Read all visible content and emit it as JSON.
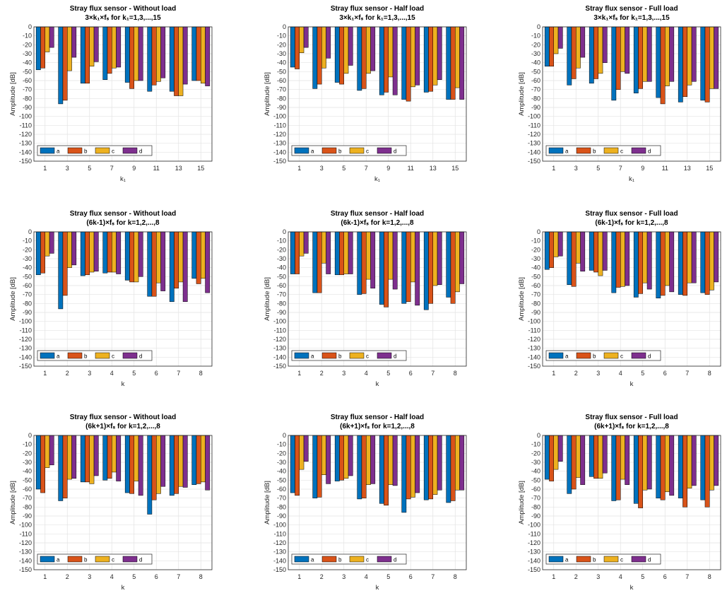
{
  "colors": {
    "a": "#0072BD",
    "b": "#D95319",
    "c": "#EDB120",
    "d": "#7E2F8E"
  },
  "chart_data": [
    {
      "type": "bar",
      "title": "Stray flux sensor - Without load",
      "subtitle": "3×k₁×fₛ for k₁=1,3,...,15",
      "xlabel": "k₁",
      "ylabel": "Amplitude [dB]",
      "ylim": [
        -150,
        0
      ],
      "legend_position": "bottom-left",
      "grid": true,
      "categories": [
        "1",
        "3",
        "5",
        "7",
        "9",
        "11",
        "13",
        "15"
      ],
      "series": [
        {
          "name": "a",
          "values": [
            -48,
            -86,
            -63,
            -59,
            -62,
            -72,
            -72,
            -60
          ]
        },
        {
          "name": "b",
          "values": [
            -46,
            -82,
            -63,
            -52,
            -69,
            -65,
            -77,
            -60
          ]
        },
        {
          "name": "c",
          "values": [
            -28,
            -49,
            -44,
            -46,
            -60,
            -61,
            -77,
            -63
          ]
        },
        {
          "name": "d",
          "values": [
            -23,
            -34,
            -39,
            -45,
            -60,
            -57,
            -64,
            -66
          ]
        }
      ]
    },
    {
      "type": "bar",
      "title": "Stray flux sensor - Half load",
      "subtitle": "3×k₁×fₛ for k₁=1,3,...,15",
      "xlabel": "k₁",
      "ylabel": "Amplitude [dB]",
      "ylim": [
        -150,
        0
      ],
      "legend_position": "bottom-left",
      "grid": true,
      "categories": [
        "1",
        "3",
        "5",
        "7",
        "9",
        "11",
        "13",
        "15"
      ],
      "series": [
        {
          "name": "a",
          "values": [
            -45,
            -69,
            -62,
            -71,
            -76,
            -81,
            -73,
            -81
          ]
        },
        {
          "name": "b",
          "values": [
            -47,
            -64,
            -64,
            -69,
            -73,
            -83,
            -72,
            -81
          ]
        },
        {
          "name": "c",
          "values": [
            -29,
            -46,
            -52,
            -52,
            -56,
            -67,
            -65,
            -68
          ]
        },
        {
          "name": "d",
          "values": [
            -23,
            -35,
            -43,
            -49,
            -76,
            -65,
            -59,
            -81
          ]
        }
      ]
    },
    {
      "type": "bar",
      "title": "Stray flux sensor - Full load",
      "subtitle": "3×k₁×fₛ for k₁=1,3,...,15",
      "xlabel": "k₁",
      "ylabel": "Amplitude [dB]",
      "ylim": [
        -150,
        0
      ],
      "legend_position": "bottom-left",
      "grid": true,
      "categories": [
        "1",
        "3",
        "5",
        "7",
        "9",
        "11",
        "13",
        "15"
      ],
      "series": [
        {
          "name": "a",
          "values": [
            -44,
            -65,
            -63,
            -82,
            -74,
            -79,
            -84,
            -82
          ]
        },
        {
          "name": "b",
          "values": [
            -44,
            -58,
            -58,
            -70,
            -69,
            -86,
            -78,
            -84
          ]
        },
        {
          "name": "c",
          "values": [
            -30,
            -46,
            -52,
            -50,
            -61,
            -66,
            -65,
            -69
          ]
        },
        {
          "name": "d",
          "values": [
            -24,
            -34,
            -40,
            -52,
            -61,
            -61,
            -61,
            -69
          ]
        }
      ]
    },
    {
      "type": "bar",
      "title": "Stray flux sensor - Without load",
      "subtitle": "(6k-1)×fₛ for k=1,2,...,8",
      "xlabel": "k",
      "ylabel": "Amplitude [dB]",
      "ylim": [
        -150,
        0
      ],
      "legend_position": "bottom-left",
      "grid": true,
      "categories": [
        "1",
        "2",
        "3",
        "4",
        "5",
        "6",
        "7",
        "8"
      ],
      "series": [
        {
          "name": "a",
          "values": [
            -48,
            -86,
            -49,
            -46,
            -54,
            -72,
            -78,
            -52
          ]
        },
        {
          "name": "b",
          "values": [
            -46,
            -71,
            -48,
            -45,
            -56,
            -72,
            -63,
            -58
          ]
        },
        {
          "name": "c",
          "values": [
            -27,
            -40,
            -45,
            -45,
            -56,
            -57,
            -56,
            -52
          ]
        },
        {
          "name": "d",
          "values": [
            -24,
            -37,
            -44,
            -47,
            -50,
            -66,
            -78,
            -68
          ]
        }
      ]
    },
    {
      "type": "bar",
      "title": "Stray flux sensor - Half load",
      "subtitle": "(6k-1)×fₛ for k=1,2,...,8",
      "xlabel": "k",
      "ylabel": "Amplitude [dB]",
      "ylim": [
        -150,
        0
      ],
      "legend_position": "bottom-left",
      "grid": true,
      "categories": [
        "1",
        "2",
        "3",
        "4",
        "5",
        "6",
        "7",
        "8"
      ],
      "series": [
        {
          "name": "a",
          "values": [
            -47,
            -68,
            -48,
            -70,
            -81,
            -80,
            -87,
            -73
          ]
        },
        {
          "name": "b",
          "values": [
            -47,
            -68,
            -48,
            -69,
            -84,
            -78,
            -80,
            -80
          ]
        },
        {
          "name": "c",
          "values": [
            -27,
            -35,
            -47,
            -53,
            -53,
            -56,
            -60,
            -67
          ]
        },
        {
          "name": "d",
          "values": [
            -24,
            -47,
            -47,
            -63,
            -64,
            -82,
            -59,
            -58
          ]
        }
      ]
    },
    {
      "type": "bar",
      "title": "Stray flux sensor - Full load",
      "subtitle": "(6k-1)×fₛ for k=1,2,...,8",
      "xlabel": "k",
      "ylabel": "Amplitude [dB]",
      "ylim": [
        -150,
        0
      ],
      "legend_position": "bottom-left",
      "grid": true,
      "categories": [
        "1",
        "2",
        "3",
        "4",
        "5",
        "6",
        "7",
        "8"
      ],
      "series": [
        {
          "name": "a",
          "values": [
            -42,
            -59,
            -43,
            -68,
            -73,
            -74,
            -70,
            -68
          ]
        },
        {
          "name": "b",
          "values": [
            -40,
            -61,
            -45,
            -62,
            -69,
            -71,
            -71,
            -70
          ]
        },
        {
          "name": "c",
          "values": [
            -28,
            -35,
            -49,
            -61,
            -57,
            -60,
            -57,
            -65
          ]
        },
        {
          "name": "d",
          "values": [
            -27,
            -44,
            -43,
            -60,
            -64,
            -67,
            -57,
            -56
          ]
        }
      ]
    },
    {
      "type": "bar",
      "title": "Stray flux sensor - Without load",
      "subtitle": "(6k+1)×fₛ for k=1,2,...,8",
      "xlabel": "k",
      "ylabel": "Amplitude [dB]",
      "ylim": [
        -150,
        0
      ],
      "legend_position": "bottom-left",
      "grid": true,
      "categories": [
        "1",
        "2",
        "3",
        "4",
        "5",
        "6",
        "7",
        "8"
      ],
      "series": [
        {
          "name": "a",
          "values": [
            -60,
            -73,
            -52,
            -50,
            -64,
            -88,
            -67,
            -55
          ]
        },
        {
          "name": "b",
          "values": [
            -64,
            -70,
            -52,
            -48,
            -65,
            -72,
            -65,
            -54
          ]
        },
        {
          "name": "c",
          "values": [
            -36,
            -49,
            -54,
            -41,
            -51,
            -65,
            -57,
            -52
          ]
        },
        {
          "name": "d",
          "values": [
            -33,
            -48,
            -45,
            -51,
            -67,
            -57,
            -58,
            -61
          ]
        }
      ]
    },
    {
      "type": "bar",
      "title": "Stray flux sensor - Half load",
      "subtitle": "(6k+1)×fₛ for k=1,2,...,8",
      "xlabel": "k",
      "ylabel": "Amplitude [dB]",
      "ylim": [
        -150,
        0
      ],
      "legend_position": "bottom-left",
      "grid": true,
      "categories": [
        "1",
        "2",
        "3",
        "4",
        "5",
        "6",
        "7",
        "8"
      ],
      "series": [
        {
          "name": "a",
          "values": [
            -64,
            -70,
            -51,
            -71,
            -76,
            -86,
            -72,
            -75
          ]
        },
        {
          "name": "b",
          "values": [
            -67,
            -69,
            -50,
            -70,
            -78,
            -71,
            -71,
            -73
          ]
        },
        {
          "name": "c",
          "values": [
            -38,
            -44,
            -48,
            -55,
            -55,
            -69,
            -66,
            -61
          ]
        },
        {
          "name": "d",
          "values": [
            -29,
            -54,
            -45,
            -54,
            -56,
            -64,
            -61,
            -61
          ]
        }
      ]
    },
    {
      "type": "bar",
      "title": "Stray flux sensor - Full load",
      "subtitle": "(6k+1)×fₛ for k=1,2,...,8",
      "xlabel": "k",
      "ylabel": "Amplitude [dB]",
      "ylim": [
        -150,
        0
      ],
      "legend_position": "bottom-left",
      "grid": true,
      "categories": [
        "1",
        "2",
        "3",
        "4",
        "5",
        "6",
        "7",
        "8"
      ],
      "series": [
        {
          "name": "a",
          "values": [
            -49,
            -65,
            -46,
            -73,
            -76,
            -70,
            -70,
            -72
          ]
        },
        {
          "name": "b",
          "values": [
            -51,
            -60,
            -48,
            -72,
            -81,
            -72,
            -80,
            -80
          ]
        },
        {
          "name": "c",
          "values": [
            -38,
            -47,
            -48,
            -49,
            -61,
            -63,
            -59,
            -61
          ]
        },
        {
          "name": "d",
          "values": [
            -29,
            -55,
            -42,
            -55,
            -60,
            -67,
            -56,
            -56
          ]
        }
      ]
    }
  ]
}
